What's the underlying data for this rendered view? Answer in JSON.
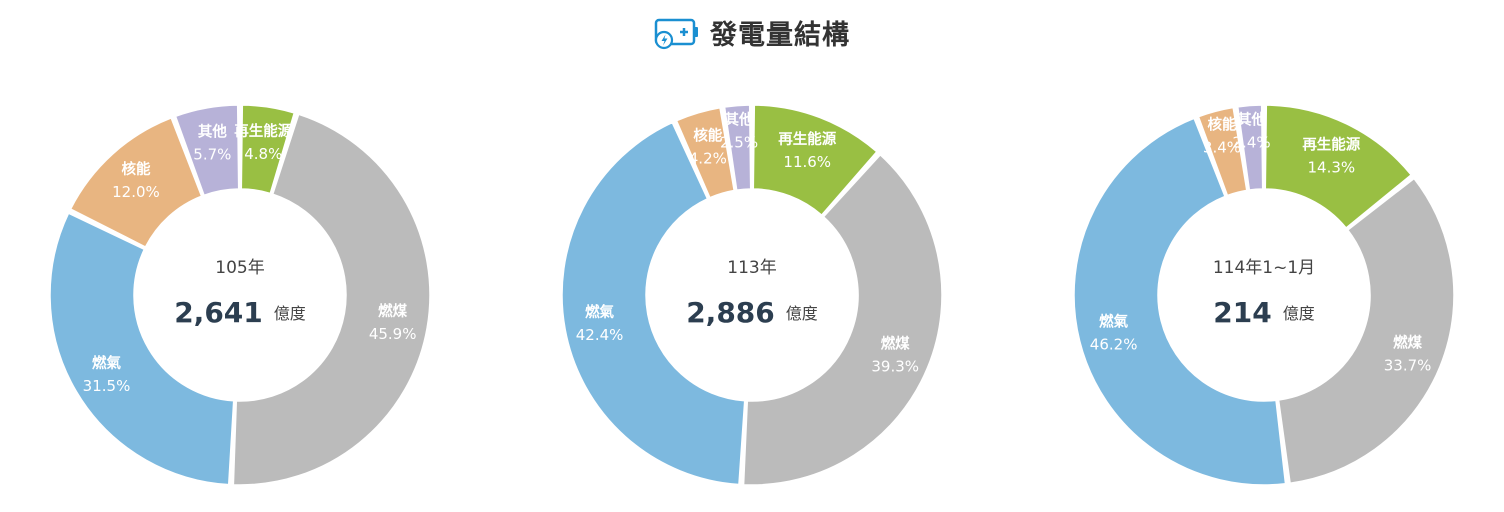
{
  "header": {
    "title": "發電量結構",
    "icon": "battery-charging-icon"
  },
  "colors": {
    "coal": "#bbbbbb",
    "gas": "#7db9df",
    "nuclear": "#e8b581",
    "other": "#b7b2d8",
    "renewable": "#99bf43"
  },
  "chart_data": [
    {
      "type": "donut",
      "center_label": "105年",
      "total": "2,641",
      "unit": "億度",
      "slices": [
        {
          "key": "renewable",
          "name": "再生能源",
          "pct": "4.8%",
          "value": 4.8
        },
        {
          "key": "coal",
          "name": "燃煤",
          "pct": "45.9%",
          "value": 45.9
        },
        {
          "key": "gas",
          "name": "燃氣",
          "pct": "31.5%",
          "value": 31.5
        },
        {
          "key": "nuclear",
          "name": "核能",
          "pct": "12.0%",
          "value": 12.0
        },
        {
          "key": "other",
          "name": "其他",
          "pct": "5.7%",
          "value": 5.7
        }
      ]
    },
    {
      "type": "donut",
      "center_label": "113年",
      "total": "2,886",
      "unit": "億度",
      "slices": [
        {
          "key": "renewable",
          "name": "再生能源",
          "pct": "11.6%",
          "value": 11.6
        },
        {
          "key": "coal",
          "name": "燃煤",
          "pct": "39.3%",
          "value": 39.3
        },
        {
          "key": "gas",
          "name": "燃氣",
          "pct": "42.4%",
          "value": 42.4
        },
        {
          "key": "nuclear",
          "name": "核能",
          "pct": "4.2%",
          "value": 4.2
        },
        {
          "key": "other",
          "name": "其他",
          "pct": "2.5%",
          "value": 2.5
        }
      ]
    },
    {
      "type": "donut",
      "center_label": "114年1~1月",
      "total": "214",
      "unit": "億度",
      "slices": [
        {
          "key": "renewable",
          "name": "再生能源",
          "pct": "14.3%",
          "value": 14.3
        },
        {
          "key": "coal",
          "name": "燃煤",
          "pct": "33.7%",
          "value": 33.7
        },
        {
          "key": "gas",
          "name": "燃氣",
          "pct": "46.2%",
          "value": 46.2
        },
        {
          "key": "nuclear",
          "name": "核能",
          "pct": "3.4%",
          "value": 3.4
        },
        {
          "key": "other",
          "name": "其他",
          "pct": "2.4%",
          "value": 2.4
        }
      ]
    }
  ]
}
